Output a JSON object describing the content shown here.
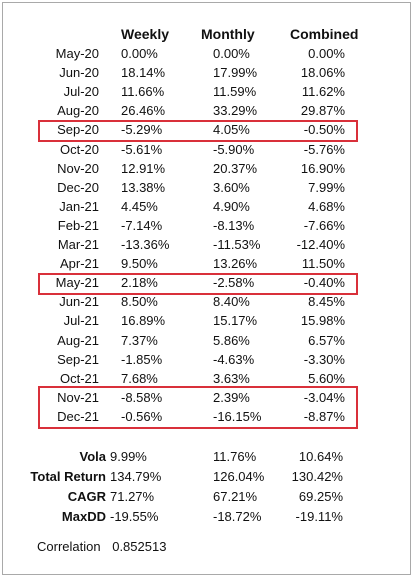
{
  "headers": {
    "weekly": "Weekly",
    "monthly": "Monthly",
    "combined": "Combined"
  },
  "rows": [
    {
      "month": "May-20",
      "weekly": "0.00%",
      "monthly": "0.00%",
      "combined": "0.00%"
    },
    {
      "month": "Jun-20",
      "weekly": "18.14%",
      "monthly": "17.99%",
      "combined": "18.06%"
    },
    {
      "month": "Jul-20",
      "weekly": "11.66%",
      "monthly": "11.59%",
      "combined": "11.62%"
    },
    {
      "month": "Aug-20",
      "weekly": "26.46%",
      "monthly": "33.29%",
      "combined": "29.87%"
    },
    {
      "month": "Sep-20",
      "weekly": "-5.29%",
      "monthly": "4.05%",
      "combined": "-0.50%",
      "highlighted": true
    },
    {
      "month": "Oct-20",
      "weekly": "-5.61%",
      "monthly": "-5.90%",
      "combined": "-5.76%"
    },
    {
      "month": "Nov-20",
      "weekly": "12.91%",
      "monthly": "20.37%",
      "combined": "16.90%"
    },
    {
      "month": "Dec-20",
      "weekly": "13.38%",
      "monthly": "3.60%",
      "combined": "7.99%"
    },
    {
      "month": "Jan-21",
      "weekly": "4.45%",
      "monthly": "4.90%",
      "combined": "4.68%"
    },
    {
      "month": "Feb-21",
      "weekly": "-7.14%",
      "monthly": "-8.13%",
      "combined": "-7.66%"
    },
    {
      "month": "Mar-21",
      "weekly": "-13.36%",
      "monthly": "-11.53%",
      "combined": "-12.40%"
    },
    {
      "month": "Apr-21",
      "weekly": "9.50%",
      "monthly": "13.26%",
      "combined": "11.50%"
    },
    {
      "month": "May-21",
      "weekly": "2.18%",
      "monthly": "-2.58%",
      "combined": "-0.40%",
      "highlighted": true
    },
    {
      "month": "Jun-21",
      "weekly": "8.50%",
      "monthly": "8.40%",
      "combined": "8.45%"
    },
    {
      "month": "Jul-21",
      "weekly": "16.89%",
      "monthly": "15.17%",
      "combined": "15.98%"
    },
    {
      "month": "Aug-21",
      "weekly": "7.37%",
      "monthly": "5.86%",
      "combined": "6.57%"
    },
    {
      "month": "Sep-21",
      "weekly": "-1.85%",
      "monthly": "-4.63%",
      "combined": "-3.30%"
    },
    {
      "month": "Oct-21",
      "weekly": "7.68%",
      "monthly": "3.63%",
      "combined": "5.60%"
    },
    {
      "month": "Nov-21",
      "weekly": "-8.58%",
      "monthly": "2.39%",
      "combined": "-3.04%",
      "highlighted": true
    },
    {
      "month": "Dec-21",
      "weekly": "-0.56%",
      "monthly": "-16.15%",
      "combined": "-8.87%",
      "highlighted": true
    }
  ],
  "stats": [
    {
      "label": "Vola",
      "weekly": "9.99%",
      "monthly": "11.76%",
      "combined": "10.64%"
    },
    {
      "label": "Total Return",
      "weekly": "134.79%",
      "monthly": "126.04%",
      "combined": "130.42%"
    },
    {
      "label": "CAGR",
      "weekly": "71.27%",
      "monthly": "67.21%",
      "combined": "69.25%"
    },
    {
      "label": "MaxDD",
      "weekly": "-19.55%",
      "monthly": "-18.72%",
      "combined": "-19.11%"
    }
  ],
  "correlation": {
    "label": "Correlation",
    "value": "0.852513"
  },
  "highlight_color": "#d9303a"
}
